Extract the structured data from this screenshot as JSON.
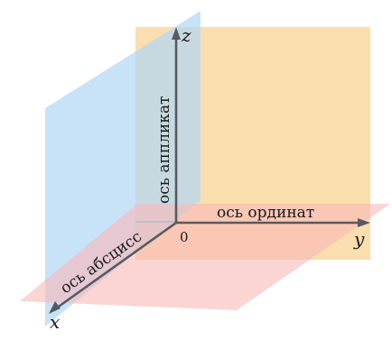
{
  "colors": {
    "plane_yz": "#f9d597",
    "plane_xz": "#b3d7f4",
    "plane_xy": "#f9b8b8",
    "axis": "#555b61"
  },
  "origin_label": "0",
  "axes": {
    "x": {
      "letter": "x",
      "name": "ось абсцисс"
    },
    "y": {
      "letter": "y",
      "name": "ось ординат"
    },
    "z": {
      "letter": "z",
      "name": "ось аппликат"
    }
  }
}
